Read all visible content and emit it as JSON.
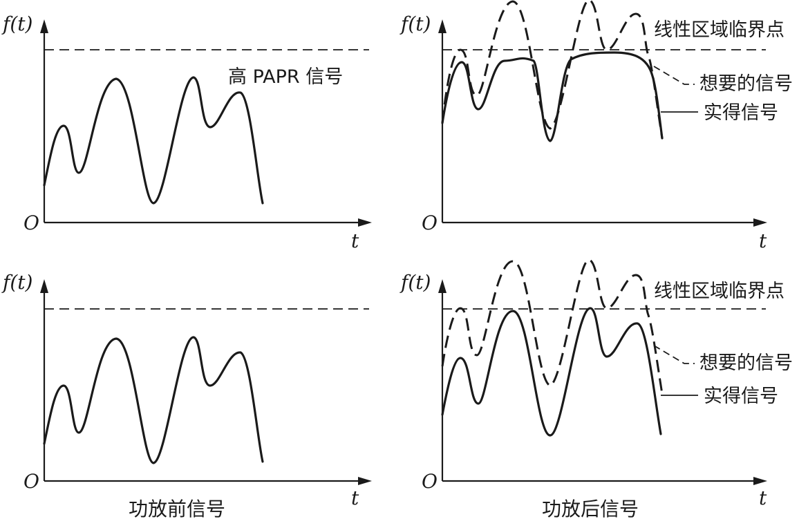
{
  "axis": {
    "y_label": "f(t)",
    "x_label": "t",
    "origin_label": "O"
  },
  "panels": {
    "top_left": {
      "annotation": "高 PAPR 信号"
    },
    "top_right": {
      "threshold_label": "线性区域临界点",
      "desired_label": "想要的信号",
      "actual_label": "实得信号"
    },
    "bottom_left": {
      "caption": "功放前信号"
    },
    "bottom_right": {
      "threshold_label": "线性区域临界点",
      "desired_label": "想要的信号",
      "actual_label": "实得信号",
      "caption": "功放后信号"
    }
  }
}
